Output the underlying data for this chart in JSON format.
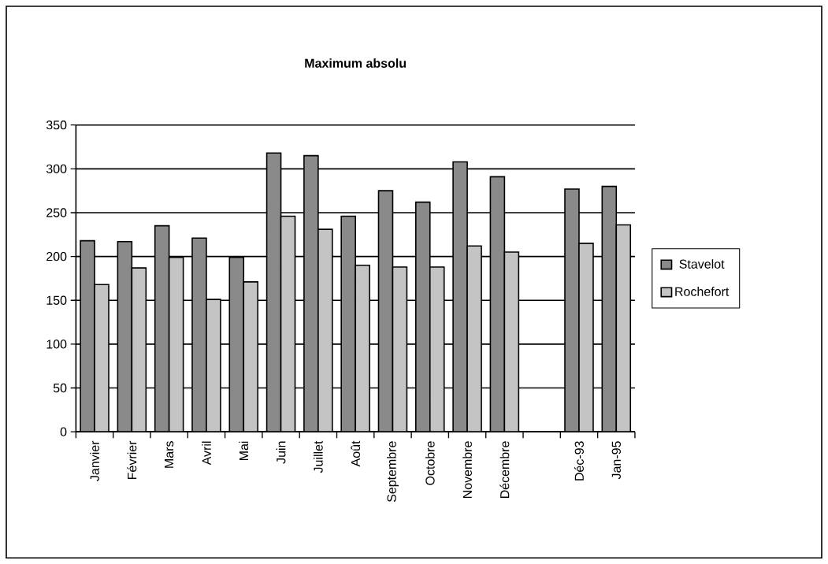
{
  "chart_data": {
    "type": "bar",
    "title": "Maximum absolu",
    "categories": [
      "Janvier",
      "Février",
      "Mars",
      "Avril",
      "Mai",
      "Juin",
      "Juillet",
      "Août",
      "Septembre",
      "Octobre",
      "Novembre",
      "Décembre",
      null,
      "Déc-93",
      "Jan-95"
    ],
    "series": [
      {
        "name": "Stavelot",
        "color": "#8a8a8a",
        "values": [
          218,
          217,
          235,
          221,
          199,
          318,
          315,
          246,
          275,
          262,
          308,
          291,
          null,
          277,
          280
        ]
      },
      {
        "name": "Rochefort",
        "color": "#c4c4c4",
        "values": [
          168,
          187,
          199,
          151,
          171,
          246,
          231,
          190,
          188,
          188,
          212,
          205,
          null,
          215,
          236
        ]
      }
    ],
    "ylim": [
      0,
      350
    ],
    "yticks": [
      0,
      50,
      100,
      150,
      200,
      250,
      300,
      350
    ],
    "grid": "y",
    "legend": "right"
  }
}
